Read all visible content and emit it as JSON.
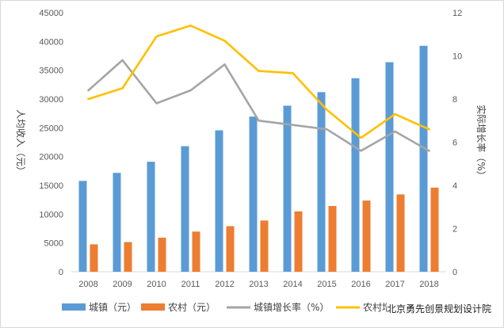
{
  "chart_data": {
    "type": "bar",
    "categories": [
      "2008",
      "2009",
      "2010",
      "2011",
      "2012",
      "2013",
      "2014",
      "2015",
      "2016",
      "2017",
      "2018"
    ],
    "series": [
      {
        "name": "城镇（元）",
        "kind": "bar",
        "axis": "left",
        "color": "#5B9BD5",
        "values": [
          15781,
          17175,
          19109,
          21810,
          24565,
          26955,
          28844,
          31195,
          33616,
          36396,
          39251
        ]
      },
      {
        "name": "农村（元）",
        "kind": "bar",
        "axis": "left",
        "color": "#ED7D31",
        "values": [
          4761,
          5153,
          5919,
          6977,
          7917,
          8896,
          10489,
          11422,
          12363,
          13432,
          14617
        ]
      },
      {
        "name": "城镇增长率（%）",
        "kind": "line",
        "axis": "right",
        "color": "#A5A5A5",
        "values": [
          8.4,
          9.8,
          7.8,
          8.4,
          9.6,
          7.0,
          6.8,
          6.6,
          5.6,
          6.5,
          5.6
        ]
      },
      {
        "name": "农村增长率（%）",
        "kind": "line",
        "axis": "right",
        "color": "#FFC000",
        "values": [
          8.0,
          8.5,
          10.9,
          11.4,
          10.7,
          9.3,
          9.2,
          7.5,
          6.2,
          7.3,
          6.6
        ]
      }
    ],
    "ylabel": "人均收入（元）",
    "y2label": "实际增长率（%）",
    "ylim": [
      0,
      45000
    ],
    "y2lim": [
      0,
      12
    ],
    "yticks": [
      0,
      5000,
      10000,
      15000,
      20000,
      25000,
      30000,
      35000,
      40000,
      45000
    ],
    "y2ticks": [
      0,
      2,
      4,
      6,
      8,
      10,
      12
    ],
    "grid": false,
    "legend_position": "bottom"
  },
  "watermark": "北京勇先创景规划设计院"
}
